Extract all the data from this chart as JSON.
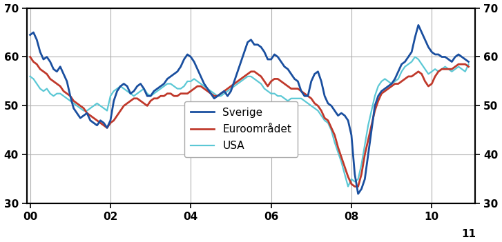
{
  "ylim": [
    30,
    70
  ],
  "yticks": [
    30,
    40,
    50,
    60,
    70
  ],
  "colors": {
    "Sverige": "#1A4F9F",
    "Euroområdet": "#C0392B",
    "USA": "#5BC8D5"
  },
  "legend_labels": [
    "Sverige",
    "Euroområdet",
    "USA"
  ],
  "x_tick_labels": [
    "00",
    "02",
    "04",
    "06",
    "08",
    "10"
  ],
  "x_tick_positions": [
    0,
    24,
    48,
    72,
    96,
    120
  ],
  "linewidths": {
    "Sverige": 2.0,
    "Euroområdet": 2.0,
    "USA": 1.6
  },
  "Sverige": [
    64.5,
    65.0,
    63.5,
    61.0,
    59.5,
    60.0,
    59.0,
    57.5,
    57.0,
    58.0,
    56.5,
    55.0,
    52.0,
    49.5,
    48.5,
    47.5,
    48.0,
    48.5,
    47.0,
    46.5,
    46.0,
    47.0,
    46.5,
    45.5,
    47.0,
    51.0,
    53.0,
    54.0,
    54.5,
    54.0,
    52.5,
    53.0,
    54.0,
    54.5,
    53.5,
    52.0,
    52.0,
    53.0,
    53.5,
    54.0,
    54.5,
    55.5,
    56.0,
    56.5,
    57.0,
    58.0,
    59.5,
    60.5,
    60.0,
    59.0,
    57.5,
    56.0,
    54.5,
    53.5,
    52.5,
    51.5,
    52.0,
    52.5,
    53.0,
    52.0,
    53.0,
    55.0,
    57.0,
    59.0,
    61.0,
    63.0,
    63.5,
    62.5,
    62.5,
    62.0,
    61.0,
    59.5,
    59.5,
    60.5,
    60.0,
    59.0,
    58.0,
    57.5,
    56.5,
    55.5,
    55.0,
    53.0,
    52.0,
    52.0,
    55.0,
    56.5,
    57.0,
    55.0,
    52.0,
    50.5,
    50.0,
    49.0,
    48.0,
    48.5,
    48.0,
    47.0,
    44.0,
    36.0,
    32.0,
    33.0,
    35.0,
    40.0,
    45.0,
    50.0,
    52.0,
    53.0,
    53.5,
    54.0,
    54.5,
    55.5,
    57.0,
    58.5,
    59.0,
    60.0,
    61.0,
    64.0,
    66.5,
    65.0,
    63.5,
    62.0,
    61.0,
    60.5,
    60.5,
    60.0,
    60.0,
    59.5,
    59.0,
    60.0,
    60.5,
    60.0,
    59.5,
    59.0
  ],
  "Euroområdet": [
    60.0,
    59.0,
    58.5,
    57.5,
    57.0,
    56.5,
    55.5,
    55.0,
    54.5,
    54.0,
    53.0,
    52.5,
    52.0,
    51.0,
    50.5,
    50.0,
    49.5,
    48.5,
    48.0,
    47.5,
    47.0,
    46.5,
    46.0,
    45.5,
    46.5,
    47.0,
    48.0,
    49.0,
    50.0,
    50.5,
    51.0,
    51.5,
    51.5,
    51.0,
    50.5,
    50.0,
    51.0,
    51.5,
    51.5,
    52.0,
    52.0,
    52.5,
    52.5,
    52.0,
    52.0,
    52.5,
    52.5,
    52.5,
    53.0,
    53.5,
    54.0,
    54.0,
    53.5,
    53.0,
    52.5,
    52.0,
    52.0,
    52.5,
    53.0,
    53.5,
    54.0,
    54.5,
    55.0,
    55.5,
    56.0,
    56.5,
    57.0,
    57.0,
    56.5,
    56.0,
    55.0,
    54.0,
    55.0,
    55.5,
    55.5,
    55.0,
    54.5,
    54.0,
    53.5,
    53.5,
    53.5,
    53.0,
    52.5,
    52.0,
    51.5,
    50.5,
    50.0,
    49.0,
    47.5,
    47.0,
    45.5,
    44.0,
    41.5,
    39.5,
    37.5,
    35.5,
    34.0,
    33.5,
    33.5,
    36.0,
    40.0,
    43.0,
    46.0,
    49.0,
    51.0,
    52.5,
    53.0,
    53.5,
    54.0,
    54.5,
    54.5,
    55.0,
    55.5,
    56.0,
    56.0,
    56.5,
    57.0,
    56.5,
    55.0,
    54.0,
    54.5,
    56.0,
    57.0,
    57.5,
    57.5,
    57.5,
    57.5,
    58.0,
    58.5,
    58.5,
    58.5,
    58.0
  ],
  "USA": [
    56.0,
    55.5,
    54.5,
    53.5,
    53.0,
    53.5,
    52.5,
    52.0,
    52.5,
    52.5,
    52.0,
    51.5,
    51.0,
    50.5,
    50.0,
    49.5,
    49.0,
    49.0,
    49.5,
    50.0,
    50.5,
    50.0,
    49.5,
    49.0,
    52.0,
    53.0,
    53.5,
    54.0,
    53.5,
    53.0,
    52.5,
    52.0,
    52.5,
    53.0,
    53.5,
    52.5,
    52.0,
    52.5,
    53.0,
    53.5,
    54.0,
    54.5,
    54.5,
    54.0,
    53.5,
    53.5,
    54.0,
    55.0,
    55.0,
    55.5,
    55.0,
    54.5,
    54.0,
    53.5,
    53.0,
    52.5,
    52.0,
    52.0,
    52.5,
    53.0,
    53.5,
    54.0,
    54.5,
    55.0,
    55.5,
    56.0,
    56.0,
    55.5,
    55.0,
    54.5,
    53.5,
    53.0,
    52.5,
    52.5,
    52.0,
    52.0,
    51.5,
    51.0,
    51.5,
    51.5,
    51.5,
    51.5,
    51.0,
    50.5,
    50.0,
    49.5,
    49.0,
    48.0,
    47.0,
    46.5,
    45.0,
    42.5,
    40.5,
    38.5,
    36.0,
    33.5,
    35.0,
    34.5,
    35.0,
    38.0,
    42.0,
    46.0,
    49.0,
    52.0,
    54.0,
    55.0,
    55.5,
    55.0,
    54.5,
    55.0,
    55.5,
    57.0,
    58.0,
    58.5,
    59.0,
    60.0,
    59.5,
    58.5,
    57.5,
    56.5,
    57.0,
    57.5,
    57.0,
    57.5,
    58.0,
    57.5,
    57.0,
    57.5,
    58.0,
    57.5,
    57.0,
    58.5
  ],
  "background_color": "#ffffff",
  "grid_color": "#b0b0b0",
  "spine_color": "#000000",
  "tick_label_fontsize": 11,
  "tick_label_fontweight": "bold",
  "legend_fontsize": 11
}
